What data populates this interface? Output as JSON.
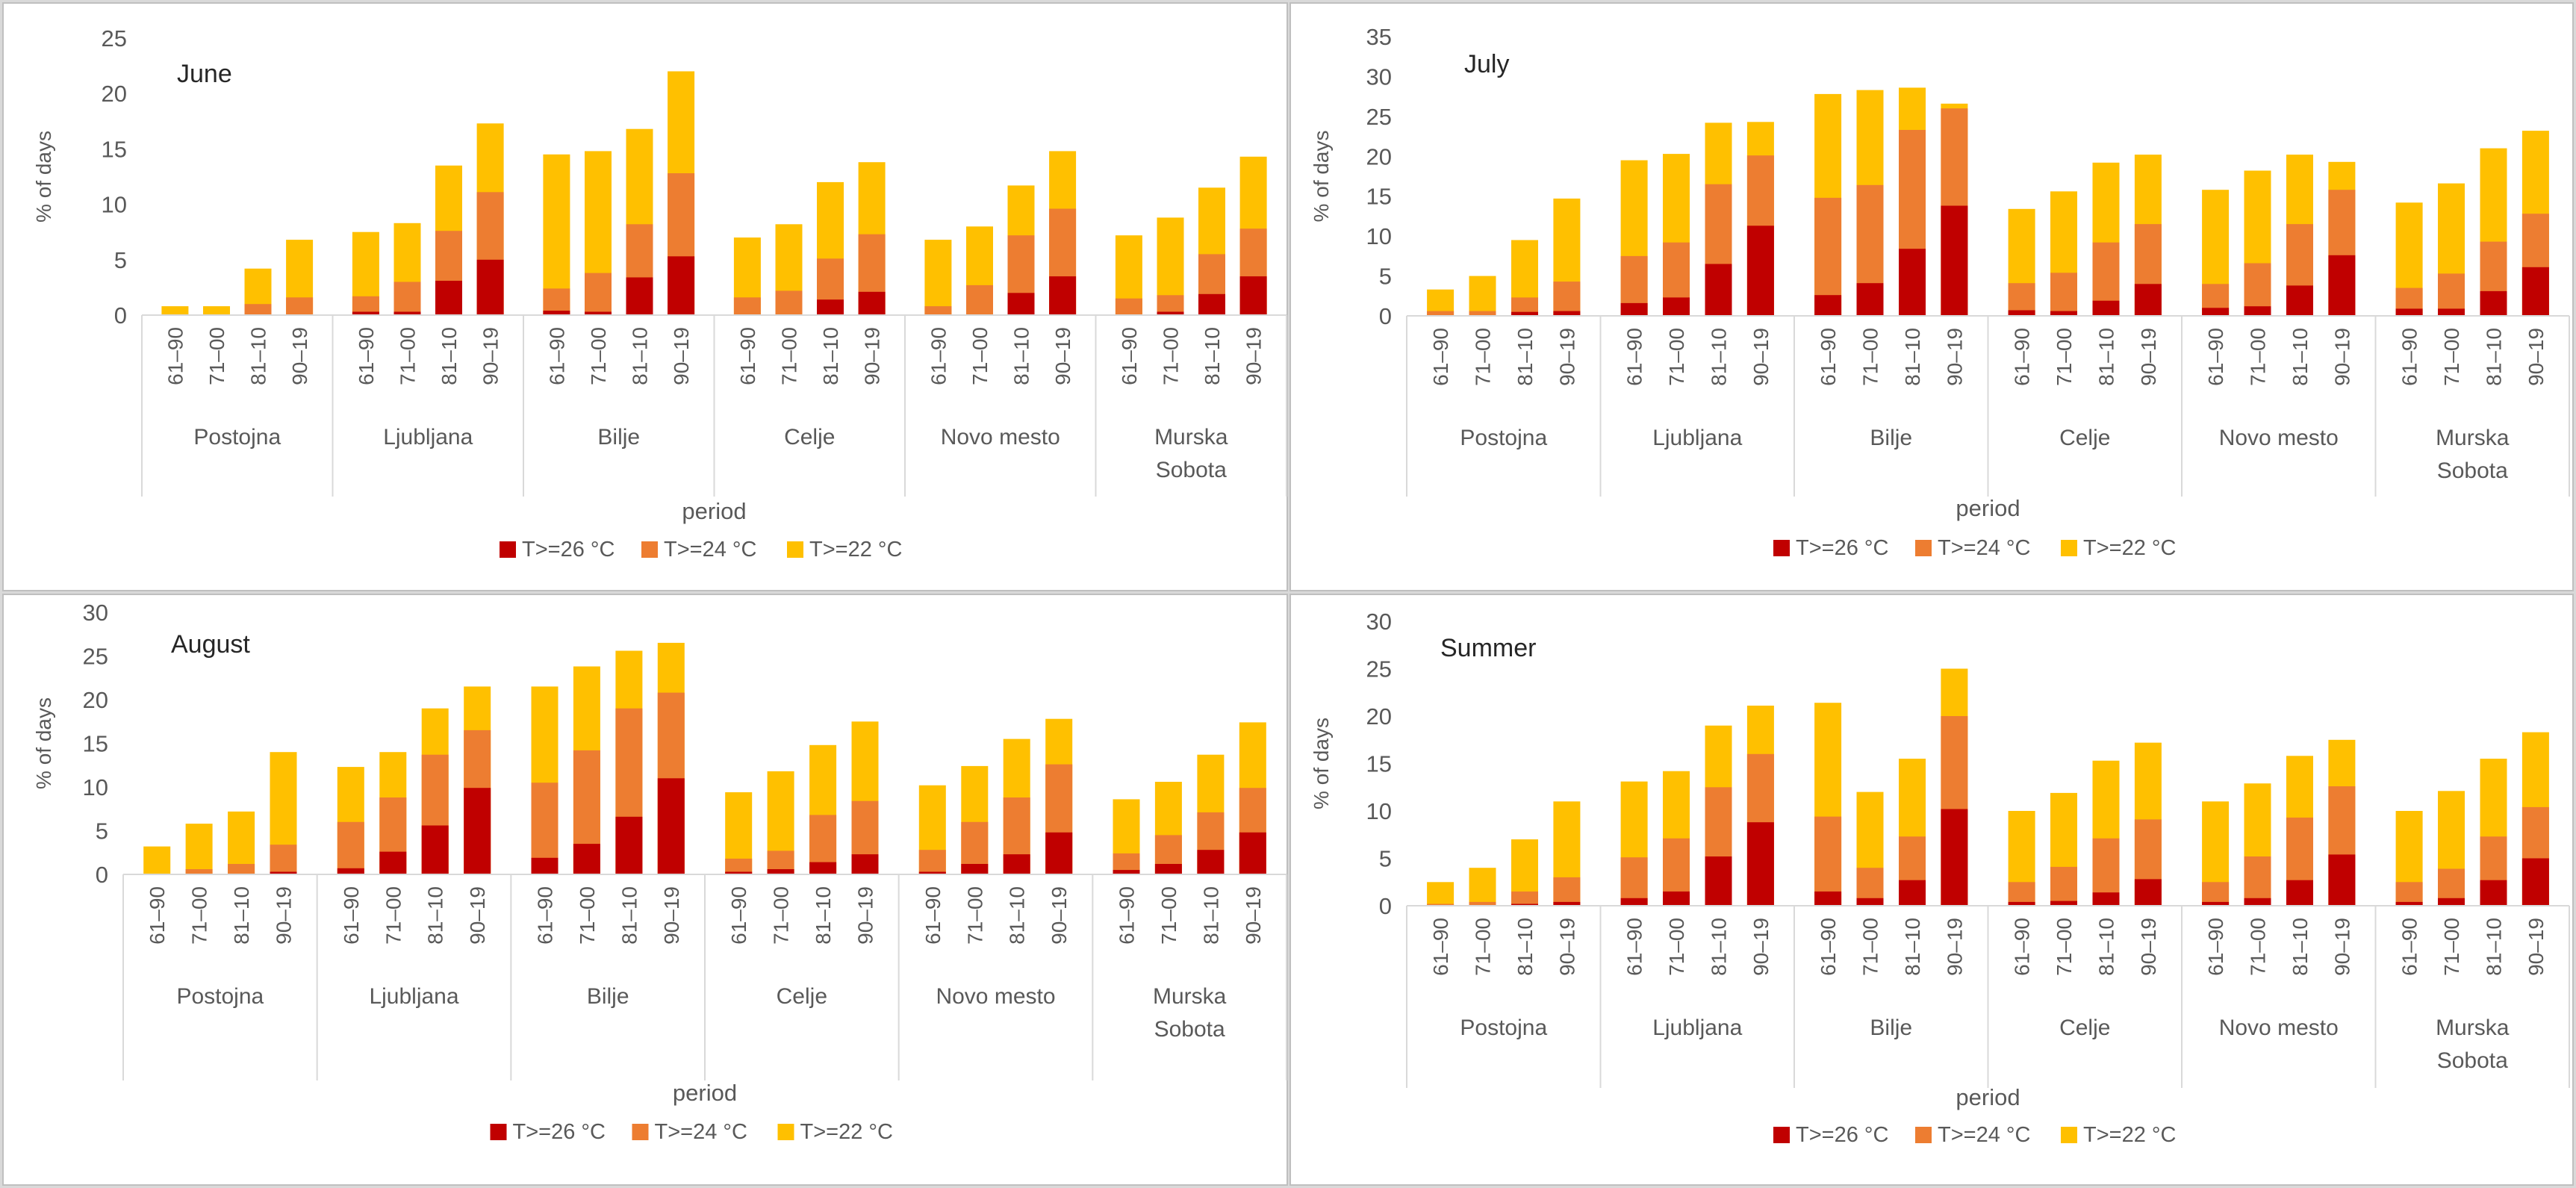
{
  "figure": {
    "description_free": true
  },
  "chart_data": [
    {
      "type": "bar",
      "stacked": "overlay",
      "title": "June",
      "ylabel": "% of days",
      "xlabel": "period",
      "ylim": [
        0,
        25
      ],
      "yticks": [
        0,
        5,
        10,
        15,
        20,
        25
      ],
      "periods": [
        "61–90",
        "71–00",
        "81–10",
        "90–19"
      ],
      "stations": [
        "Postojna",
        "Ljubljana",
        "Bilje",
        "Celje",
        "Novo mesto",
        "Murska Sobota"
      ],
      "legend_position": "bottom",
      "series": [
        {
          "name": "T>=22 °C",
          "color": "#ffc000",
          "values": [
            [
              0.8,
              0.8,
              4.2,
              6.8
            ],
            [
              7.5,
              8.3,
              13.5,
              17.3
            ],
            [
              14.5,
              14.8,
              16.8,
              22.0
            ],
            [
              7.0,
              8.2,
              12.0,
              13.8
            ],
            [
              6.8,
              8.0,
              11.7,
              14.8
            ],
            [
              7.2,
              8.8,
              11.5,
              14.3
            ]
          ]
        },
        {
          "name": "T>=24 °C",
          "color": "#ed7d31",
          "values": [
            [
              0,
              0,
              1.0,
              1.6
            ],
            [
              1.7,
              3.0,
              7.6,
              11.1
            ],
            [
              2.4,
              3.8,
              8.2,
              12.8
            ],
            [
              1.6,
              2.2,
              5.1,
              7.3
            ],
            [
              0.8,
              2.7,
              7.2,
              9.6
            ],
            [
              1.5,
              1.8,
              5.5,
              7.8
            ]
          ]
        },
        {
          "name": "T>=26 °C",
          "color": "#c00000",
          "values": [
            [
              0,
              0,
              0,
              0
            ],
            [
              0.3,
              0.3,
              3.1,
              5.0
            ],
            [
              0.4,
              0.3,
              3.4,
              5.3
            ],
            [
              0,
              0,
              1.4,
              2.1
            ],
            [
              0,
              0,
              2.0,
              3.5
            ],
            [
              0,
              0.3,
              1.9,
              3.5
            ]
          ]
        }
      ]
    },
    {
      "type": "bar",
      "stacked": "overlay",
      "title": "July",
      "ylabel": "% of days",
      "xlabel": "period",
      "ylim": [
        0,
        35
      ],
      "yticks": [
        0,
        5,
        10,
        15,
        20,
        25,
        30,
        35
      ],
      "periods": [
        "61–90",
        "71–00",
        "81–10",
        "90–19"
      ],
      "stations": [
        "Postojna",
        "Ljubljana",
        "Bilje",
        "Celje",
        "Novo mesto",
        "Murska Sobota"
      ],
      "legend_position": "bottom",
      "series": [
        {
          "name": "T>=22 °C",
          "color": "#ffc000",
          "values": [
            [
              3.3,
              5.0,
              9.5,
              14.7
            ],
            [
              19.5,
              20.3,
              24.2,
              24.3
            ],
            [
              27.8,
              28.3,
              28.6,
              26.6
            ],
            [
              13.4,
              15.6,
              19.2,
              20.2
            ],
            [
              15.8,
              18.2,
              20.2,
              19.3
            ],
            [
              14.2,
              16.6,
              21.0,
              23.2
            ]
          ]
        },
        {
          "name": "T>=24 °C",
          "color": "#ed7d31",
          "values": [
            [
              0.6,
              0.6,
              2.3,
              4.3
            ],
            [
              7.5,
              9.2,
              16.5,
              20.1
            ],
            [
              14.8,
              16.4,
              23.3,
              26.0
            ],
            [
              4.1,
              5.4,
              9.2,
              11.5
            ],
            [
              4.0,
              6.6,
              11.5,
              15.8
            ],
            [
              3.5,
              5.3,
              9.3,
              12.8
            ]
          ]
        },
        {
          "name": "T>=26 °C",
          "color": "#c00000",
          "values": [
            [
              0,
              0,
              0.5,
              0.6
            ],
            [
              1.6,
              2.3,
              6.5,
              11.3
            ],
            [
              2.6,
              4.1,
              8.4,
              13.8
            ],
            [
              0.7,
              0.6,
              1.9,
              4.0
            ],
            [
              1.0,
              1.2,
              3.8,
              7.6
            ],
            [
              0.9,
              0.9,
              3.1,
              6.1
            ]
          ]
        }
      ]
    },
    {
      "type": "bar",
      "stacked": "overlay",
      "title": "August",
      "ylabel": "% of days",
      "xlabel": "period",
      "ylim": [
        0,
        30
      ],
      "yticks": [
        0,
        5,
        10,
        15,
        20,
        25,
        30
      ],
      "periods": [
        "61–90",
        "71–00",
        "81–10",
        "90–19"
      ],
      "stations": [
        "Postojna",
        "Ljubljana",
        "Bilje",
        "Celje",
        "Novo mesto",
        "Murska Sobota"
      ],
      "legend_position": "bottom",
      "series": [
        {
          "name": "T>=22 °C",
          "color": "#ffc000",
          "values": [
            [
              3.2,
              5.8,
              7.2,
              14.0
            ],
            [
              12.3,
              14.0,
              19.0,
              21.5
            ],
            [
              21.5,
              23.8,
              25.6,
              26.5
            ],
            [
              9.4,
              11.8,
              14.8,
              17.5
            ],
            [
              10.2,
              12.4,
              15.5,
              17.8
            ],
            [
              8.6,
              10.6,
              13.7,
              17.4
            ]
          ]
        },
        {
          "name": "T>=24 °C",
          "color": "#ed7d31",
          "values": [
            [
              0,
              0.6,
              1.2,
              3.4
            ],
            [
              6.0,
              8.8,
              13.7,
              16.5
            ],
            [
              10.5,
              14.2,
              19.0,
              20.8
            ],
            [
              1.8,
              2.7,
              6.8,
              8.4
            ],
            [
              2.8,
              6.0,
              8.8,
              12.6
            ],
            [
              2.4,
              4.5,
              7.1,
              9.9
            ]
          ]
        },
        {
          "name": "T>=26 °C",
          "color": "#c00000",
          "values": [
            [
              0,
              0,
              0,
              0.3
            ],
            [
              0.7,
              2.6,
              5.6,
              9.9
            ],
            [
              1.9,
              3.5,
              6.6,
              11.0
            ],
            [
              0.3,
              0.6,
              1.4,
              2.3
            ],
            [
              0.3,
              1.2,
              2.3,
              4.8
            ],
            [
              0.5,
              1.2,
              2.8,
              4.8
            ]
          ]
        }
      ]
    },
    {
      "type": "bar",
      "stacked": "overlay",
      "title": "Summer",
      "ylabel": "% of days",
      "xlabel": "period",
      "ylim": [
        0,
        30
      ],
      "yticks": [
        0,
        5,
        10,
        15,
        20,
        25,
        30
      ],
      "periods": [
        "61–90",
        "71–00",
        "81–10",
        "90–19"
      ],
      "stations": [
        "Postojna",
        "Ljubljana",
        "Bilje",
        "Celje",
        "Novo mesto",
        "Murska Sobota"
      ],
      "legend_position": "bottom",
      "series": [
        {
          "name": "T>=22 °C",
          "color": "#ffc000",
          "values": [
            [
              2.5,
              4.0,
              7.0,
              11.0
            ],
            [
              13.1,
              14.2,
              19.0,
              21.1
            ],
            [
              21.4,
              12.0,
              15.5,
              25.0
            ],
            [
              10.0,
              11.9,
              15.3,
              17.2
            ],
            [
              11.0,
              12.9,
              15.8,
              17.5
            ],
            [
              10.0,
              12.1,
              15.5,
              18.3
            ]
          ]
        },
        {
          "name": "T>=24 °C",
          "color": "#ed7d31",
          "values": [
            [
              0.2,
              0.4,
              1.5,
              3.0
            ],
            [
              5.1,
              7.1,
              12.5,
              16.0
            ],
            [
              9.4,
              4.0,
              7.3,
              20.0
            ],
            [
              2.5,
              4.1,
              7.1,
              9.1
            ],
            [
              2.5,
              5.2,
              9.3,
              12.6
            ],
            [
              2.5,
              3.9,
              7.3,
              10.4
            ]
          ]
        },
        {
          "name": "T>=26 °C",
          "color": "#c00000",
          "values": [
            [
              0,
              0,
              0.2,
              0.4
            ],
            [
              0.8,
              1.5,
              5.2,
              8.8
            ],
            [
              1.5,
              0.8,
              2.7,
              10.2
            ],
            [
              0.4,
              0.5,
              1.4,
              2.8
            ],
            [
              0.4,
              0.8,
              2.7,
              5.4
            ],
            [
              0.4,
              0.8,
              2.7,
              5.0
            ]
          ]
        }
      ]
    }
  ]
}
